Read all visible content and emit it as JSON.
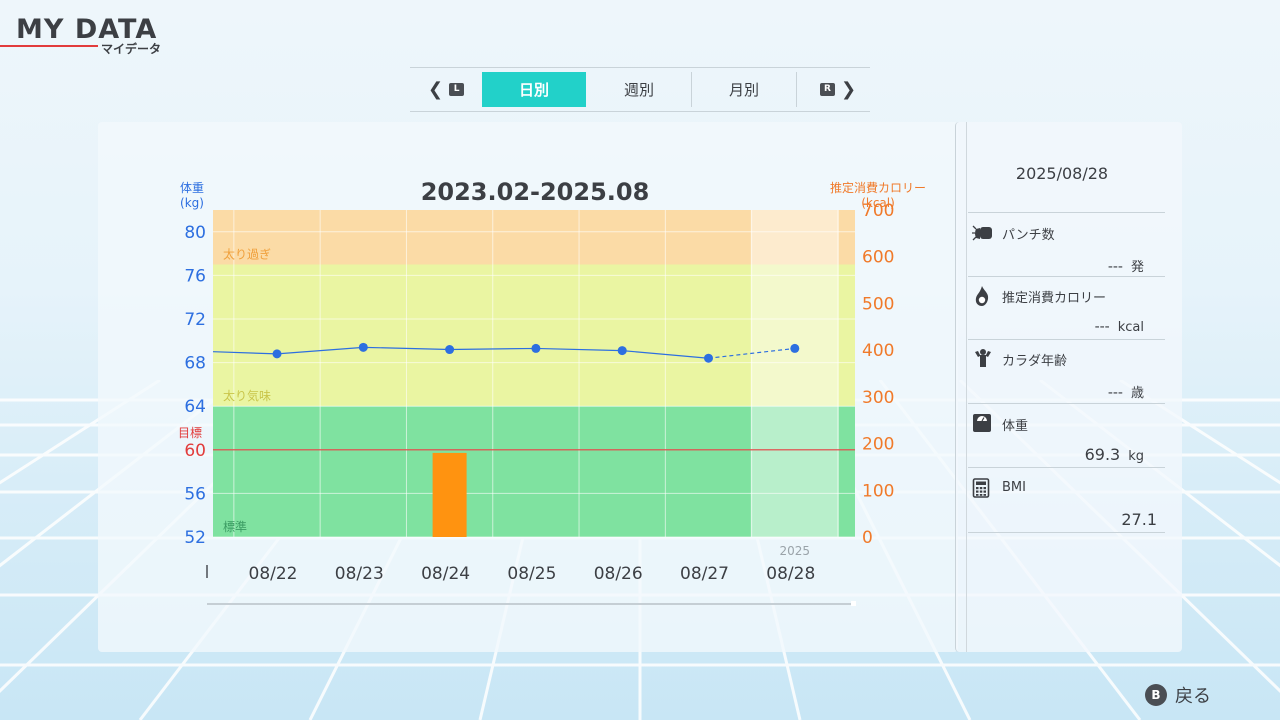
{
  "header": {
    "title": "MY DATA",
    "subtitle": "マイデータ"
  },
  "tabs": {
    "prev_key": "L",
    "next_key": "R",
    "items": [
      {
        "label": "日別",
        "active": true
      },
      {
        "label": "週別",
        "active": false
      },
      {
        "label": "月別",
        "active": false
      }
    ]
  },
  "chart_data": {
    "type": "line",
    "title": "2023.02-2025.08",
    "y_left_label": [
      "体重",
      "(kg)"
    ],
    "y_right_label": [
      "推定消費カロリー",
      "(kcal)"
    ],
    "y_left_ticks": [
      80,
      76,
      72,
      68,
      64,
      60,
      56,
      52
    ],
    "y_right_ticks": [
      700,
      600,
      500,
      400,
      300,
      200,
      100,
      0
    ],
    "ylim_left": [
      52,
      82
    ],
    "ylim_right": [
      0,
      700
    ],
    "categories": [
      "08/22",
      "08/23",
      "08/24",
      "08/25",
      "08/26",
      "08/27",
      "08/28"
    ],
    "year_label": "2025",
    "weight_series": [
      68.8,
      69.4,
      69.2,
      69.3,
      69.1,
      68.4,
      69.3
    ],
    "weight_left_edge": 69.0,
    "calorie_bars": [
      {
        "category": "08/24",
        "value": 180
      }
    ],
    "bands": [
      {
        "label": "太り過ぎ",
        "from": 77,
        "to": 82,
        "color": "#fbdba6"
      },
      {
        "label": "太り気味",
        "from": 64,
        "to": 77,
        "color": "#eaf5a2"
      },
      {
        "label": "標準",
        "from": 52,
        "to": 64,
        "color": "#7fe2a0"
      }
    ],
    "target": {
      "label": "目標",
      "value": 60,
      "color": "#e23c3c"
    },
    "colors": {
      "line": "#2d6fe0",
      "bar": "#ff9310",
      "left_axis": "#2d6fe0",
      "right_axis": "#f07a2a"
    }
  },
  "detail": {
    "date": "2025/08/28",
    "stats": [
      {
        "icon": "punch-icon",
        "label": "パンチ数",
        "value": "---",
        "unit": "発"
      },
      {
        "icon": "flame-icon",
        "label": "推定消費カロリー",
        "value": "---",
        "unit": "kcal"
      },
      {
        "icon": "body-age-icon",
        "label": "カラダ年齢",
        "value": "---",
        "unit": "歳"
      },
      {
        "icon": "scale-icon",
        "label": "体重",
        "value": "69.3",
        "unit": "kg"
      },
      {
        "icon": "calculator-icon",
        "label": "BMI",
        "value": "27.1",
        "unit": ""
      }
    ]
  },
  "footer": {
    "back_button": "B",
    "back_label": "戻る"
  }
}
